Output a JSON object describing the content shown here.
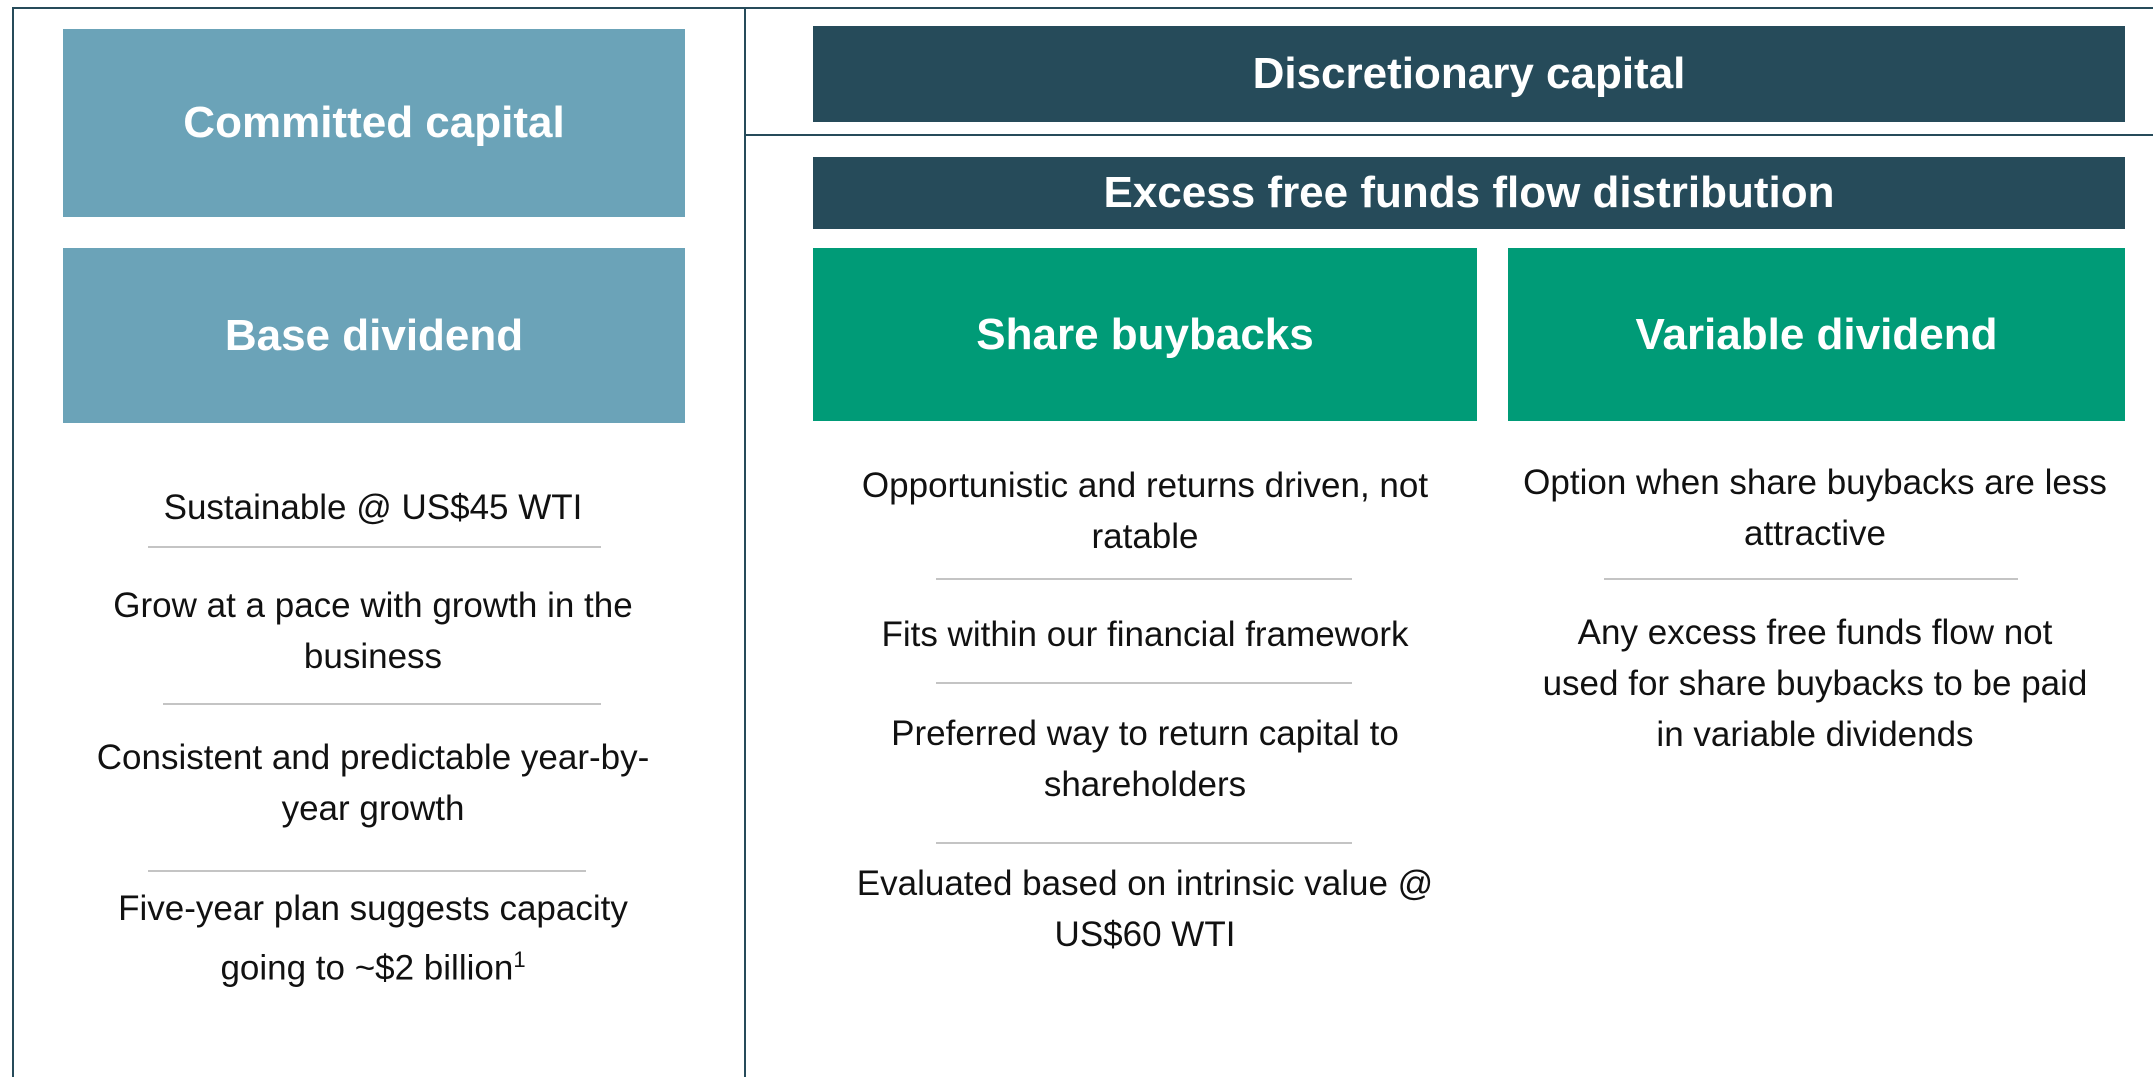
{
  "committed": {
    "title": "Committed capital",
    "column": {
      "title": "Base dividend",
      "items": [
        {
          "text": "Sustainable @ US$45 WTI"
        },
        {
          "text": "Grow at a pace with growth in the business"
        },
        {
          "text": "Consistent and predictable year-by-year growth"
        },
        {
          "text": "Five-year plan suggests capacity going to ~$2 billion",
          "footnote": "1"
        }
      ]
    }
  },
  "discretionary": {
    "title": "Discretionary capital",
    "subtitle": "Excess free funds flow distribution",
    "columns": [
      {
        "title": "Share buybacks",
        "items": [
          {
            "text": "Opportunistic and returns driven, not ratable"
          },
          {
            "text": "Fits within our financial framework"
          },
          {
            "text": "Preferred way to return capital to shareholders"
          },
          {
            "text": "Evaluated based on intrinsic value @ US$60 WTI"
          }
        ]
      },
      {
        "title": "Variable dividend",
        "items": [
          {
            "text": "Option when share buybacks are less attractive"
          },
          {
            "text": "Any excess free funds flow not used for share buybacks to be paid in variable dividends"
          }
        ]
      }
    ]
  }
}
